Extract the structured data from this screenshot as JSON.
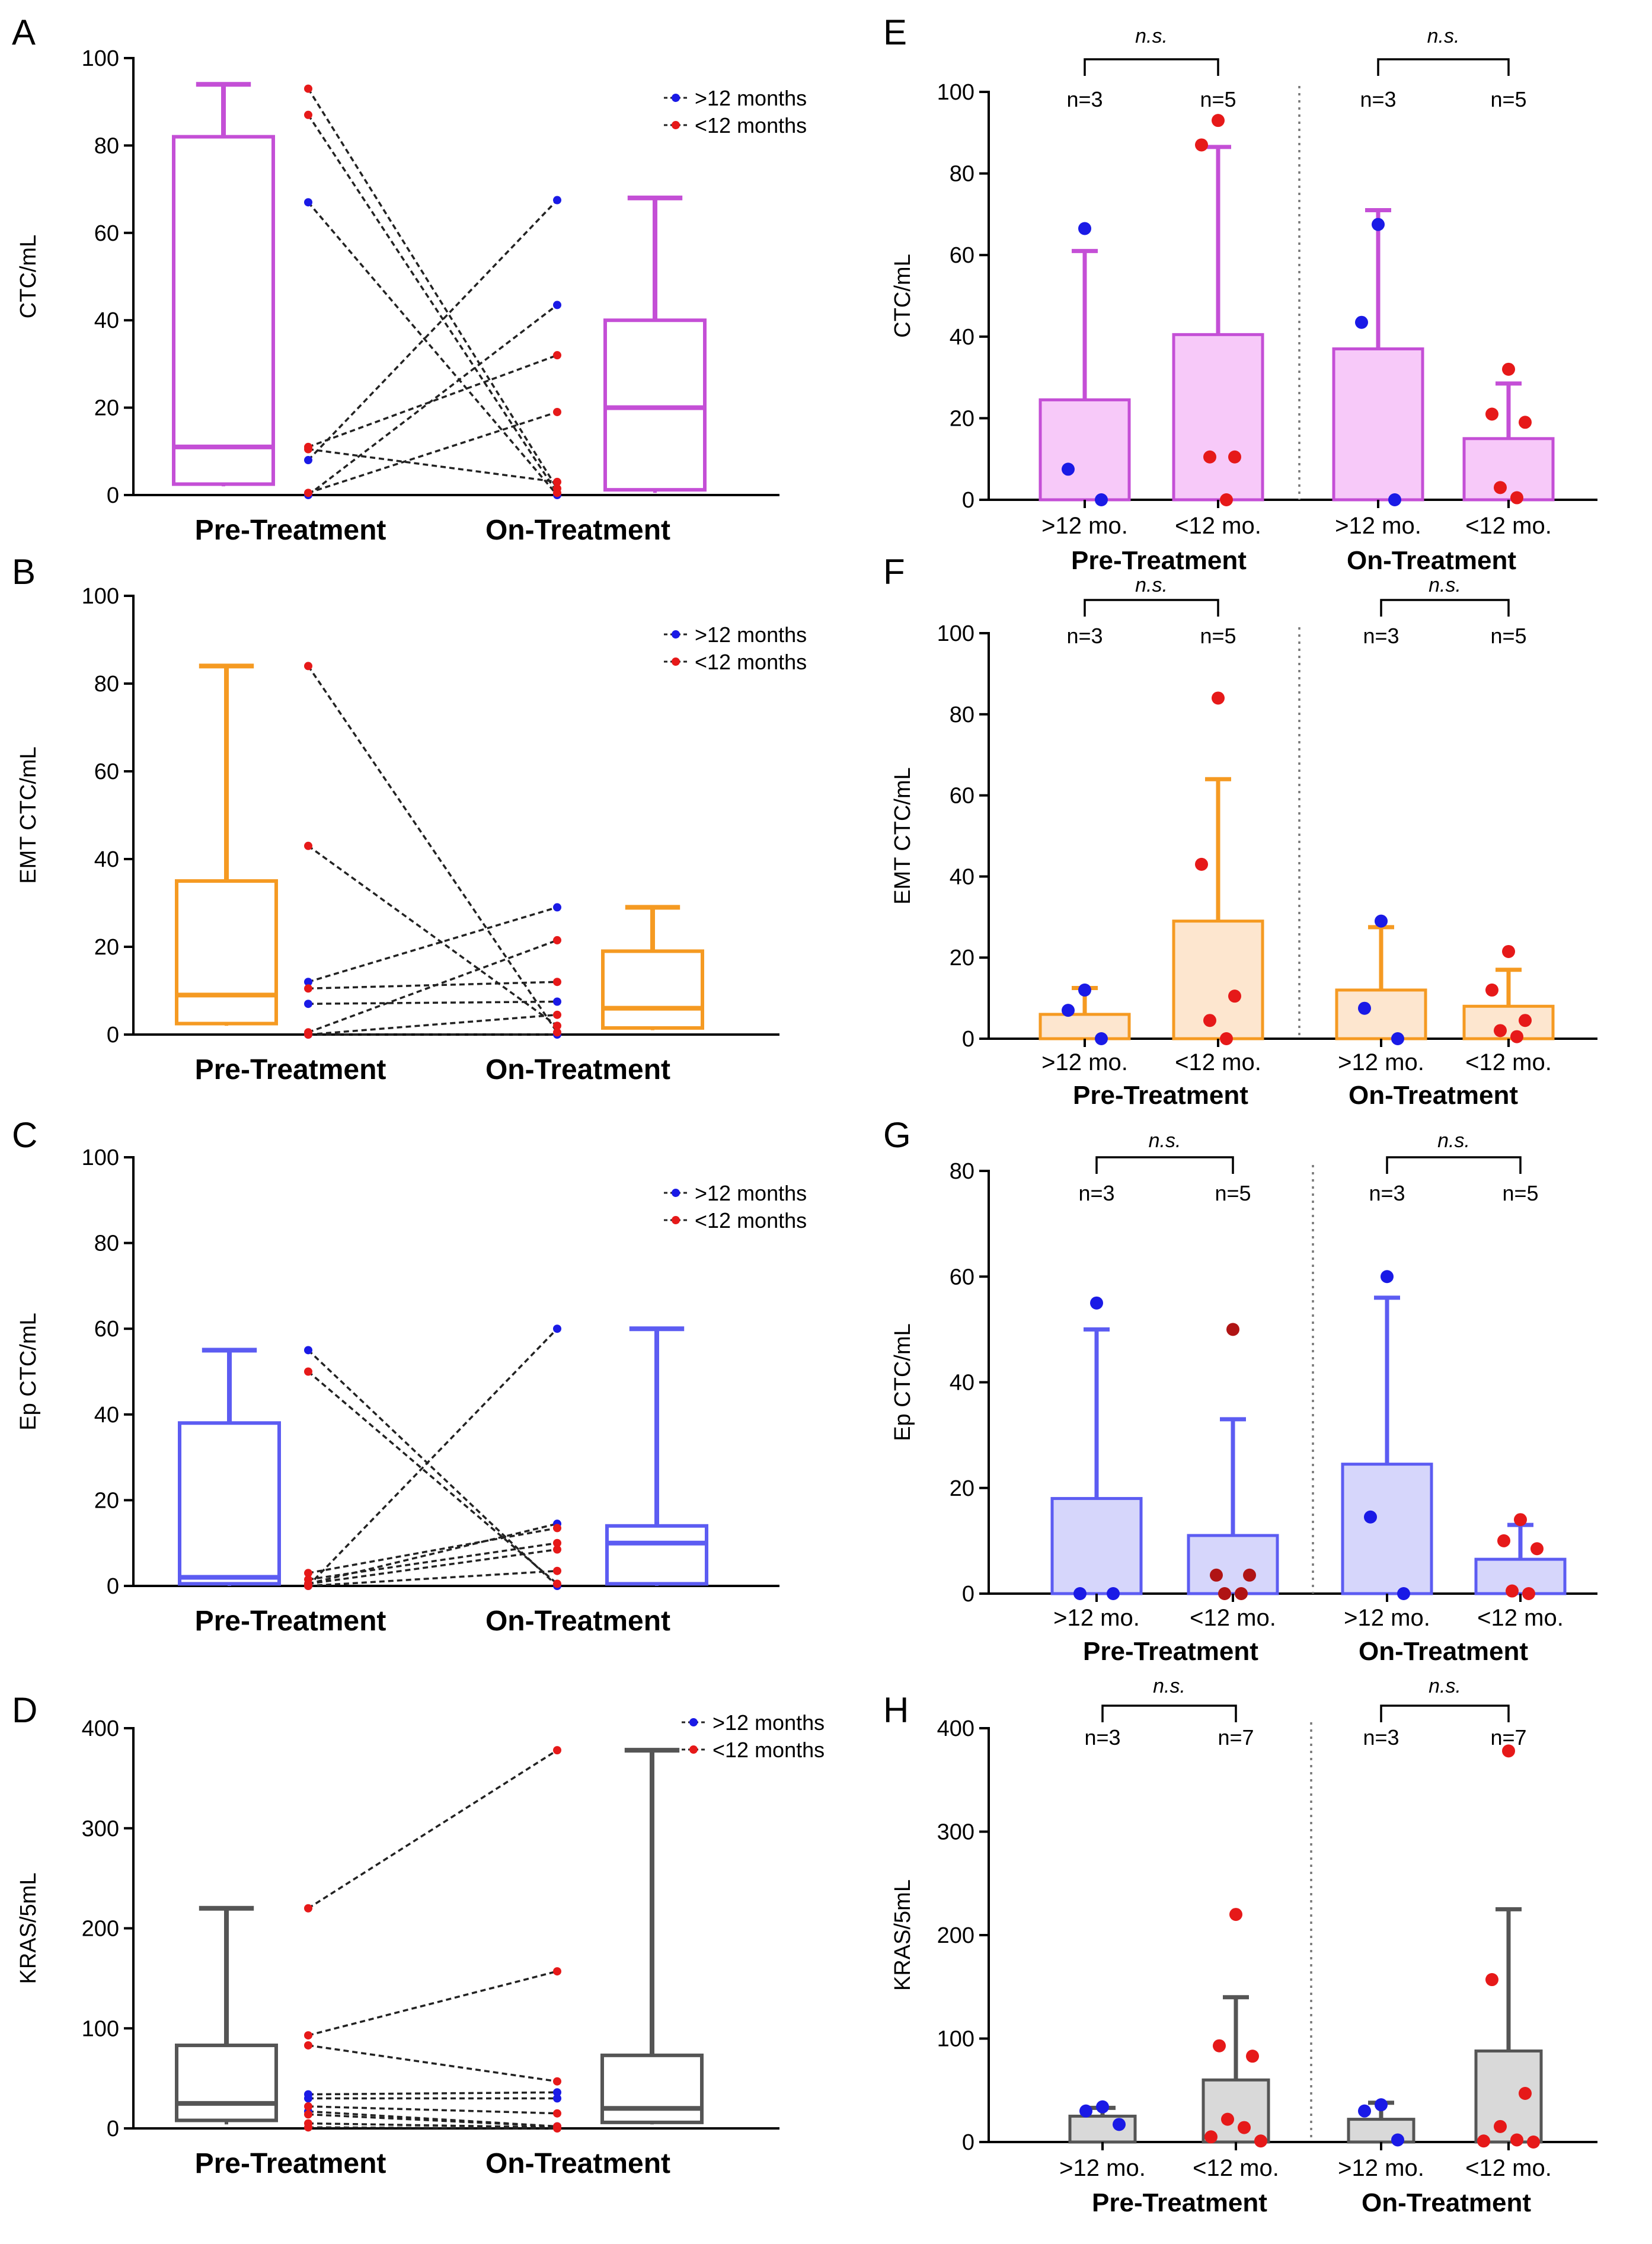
{
  "figure": {
    "colors": {
      "blue_point": "#1a1ae6",
      "red_point": "#e61919",
      "dark_red_point": "#b01414",
      "axis": "#000000",
      "connector": "#222222",
      "separator": "#777777"
    }
  },
  "chart_data": [
    {
      "id": "A",
      "type": "boxplot_paired",
      "panel_label": "A",
      "ylabel": "CTC/mL",
      "ylim": [
        0,
        100
      ],
      "yticks": [
        0,
        20,
        40,
        60,
        80,
        100
      ],
      "color": "#c44fd6",
      "xlabels": [
        "Pre-Treatment",
        "On-Treatment"
      ],
      "legend": [
        {
          "label": ">12 months",
          "color": "#1a1ae6"
        },
        {
          "label": "<12 months",
          "color": "#e61919"
        }
      ],
      "boxes": [
        {
          "group": "Pre-Treatment",
          "min": 2.0,
          "q1": 2.5,
          "median": 11.0,
          "q3": 82.0,
          "max": 94.0
        },
        {
          "group": "On-Treatment",
          "min": 0.5,
          "q1": 1.2,
          "median": 20.0,
          "q3": 40.0,
          "max": 68.0
        }
      ],
      "pairs": [
        {
          "group": ">12 months",
          "pre": 67.0,
          "on": 0.0
        },
        {
          "group": ">12 months",
          "pre": 8.0,
          "on": 67.5
        },
        {
          "group": ">12 months",
          "pre": 0.0,
          "on": 43.5
        },
        {
          "group": "<12 months",
          "pre": 93.0,
          "on": 1.5
        },
        {
          "group": "<12 months",
          "pre": 87.0,
          "on": 0.5
        },
        {
          "group": "<12 months",
          "pre": 11.0,
          "on": 32.0
        },
        {
          "group": "<12 months",
          "pre": 10.5,
          "on": 3.0
        },
        {
          "group": "<12 months",
          "pre": 0.5,
          "on": 19.0
        }
      ]
    },
    {
      "id": "B",
      "type": "boxplot_paired",
      "panel_label": "B",
      "ylabel": "EMT CTC/mL",
      "ylim": [
        0,
        100
      ],
      "yticks": [
        0,
        20,
        40,
        60,
        80,
        100
      ],
      "color": "#f59a22",
      "xlabels": [
        "Pre-Treatment",
        "On-Treatment"
      ],
      "legend": [
        {
          "label": ">12 months",
          "color": "#1a1ae6"
        },
        {
          "label": "<12 months",
          "color": "#e61919"
        }
      ],
      "boxes": [
        {
          "group": "Pre-Treatment",
          "min": 2.0,
          "q1": 2.5,
          "median": 9.0,
          "q3": 35.0,
          "max": 84.0
        },
        {
          "group": "On-Treatment",
          "min": 1.0,
          "q1": 1.5,
          "median": 6.0,
          "q3": 19.0,
          "max": 29.0
        }
      ],
      "pairs": [
        {
          "group": ">12 months",
          "pre": 12.0,
          "on": 29.0
        },
        {
          "group": ">12 months",
          "pre": 7.0,
          "on": 7.5
        },
        {
          "group": ">12 months",
          "pre": 0.0,
          "on": 0.0
        },
        {
          "group": "<12 months",
          "pre": 84.0,
          "on": 0.5
        },
        {
          "group": "<12 months",
          "pre": 43.0,
          "on": 2.0
        },
        {
          "group": "<12 months",
          "pre": 10.5,
          "on": 12.0
        },
        {
          "group": "<12 months",
          "pre": 0.5,
          "on": 21.5
        },
        {
          "group": "<12 months",
          "pre": 0.0,
          "on": 4.5
        }
      ]
    },
    {
      "id": "C",
      "type": "boxplot_paired",
      "panel_label": "C",
      "ylabel": "Ep CTC/mL",
      "ylim": [
        0,
        100
      ],
      "yticks": [
        0,
        20,
        40,
        60,
        80,
        100
      ],
      "color": "#5c5cf2",
      "xlabels": [
        "Pre-Treatment",
        "On-Treatment"
      ],
      "legend": [
        {
          "label": ">12 months",
          "color": "#1a1ae6"
        },
        {
          "label": "<12 months",
          "color": "#e61919"
        }
      ],
      "boxes": [
        {
          "group": "Pre-Treatment",
          "min": 0.0,
          "q1": 0.5,
          "median": 2.0,
          "q3": 38.0,
          "max": 55.0
        },
        {
          "group": "On-Treatment",
          "min": 0.0,
          "q1": 0.5,
          "median": 10.0,
          "q3": 14.0,
          "max": 60.0
        }
      ],
      "pairs": [
        {
          "group": ">12 months",
          "pre": 55.0,
          "on": 0.0
        },
        {
          "group": ">12 months",
          "pre": 0.0,
          "on": 60.0
        },
        {
          "group": ">12 months",
          "pre": 0.5,
          "on": 14.5
        },
        {
          "group": "<12 months",
          "pre": 50.0,
          "on": 0.5
        },
        {
          "group": "<12 months",
          "pre": 3.0,
          "on": 13.5
        },
        {
          "group": "<12 months",
          "pre": 1.5,
          "on": 10.0
        },
        {
          "group": "<12 months",
          "pre": 0.5,
          "on": 8.5
        },
        {
          "group": "<12 months",
          "pre": 0.0,
          "on": 3.5
        }
      ]
    },
    {
      "id": "D",
      "type": "boxplot_paired",
      "panel_label": "D",
      "ylabel": "KRAS/5mL",
      "ylim": [
        0,
        400
      ],
      "yticks": [
        0,
        100,
        200,
        300,
        400
      ],
      "color": "#555555",
      "xlabels": [
        "Pre-Treatment",
        "On-Treatment"
      ],
      "legend": [
        {
          "label": ">12 months",
          "color": "#1a1ae6"
        },
        {
          "label": "<12 months",
          "color": "#e61919"
        }
      ],
      "boxes": [
        {
          "group": "Pre-Treatment",
          "min": 4.0,
          "q1": 8.0,
          "median": 25.0,
          "q3": 83.0,
          "max": 220.0
        },
        {
          "group": "On-Treatment",
          "min": 4.0,
          "q1": 6.0,
          "median": 20.0,
          "q3": 73.0,
          "max": 378.0
        }
      ],
      "pairs": [
        {
          "group": ">12 months",
          "pre": 34.0,
          "on": 36.0
        },
        {
          "group": ">12 months",
          "pre": 30.0,
          "on": 30.0
        },
        {
          "group": ">12 months",
          "pre": 17.0,
          "on": 2.0
        },
        {
          "group": "<12 months",
          "pre": 220.0,
          "on": 378.0
        },
        {
          "group": "<12 months",
          "pre": 93.0,
          "on": 157.0
        },
        {
          "group": "<12 months",
          "pre": 83.0,
          "on": 47.0
        },
        {
          "group": "<12 months",
          "pre": 22.0,
          "on": 15.0
        },
        {
          "group": "<12 months",
          "pre": 14.0,
          "on": 2.0
        },
        {
          "group": "<12 months",
          "pre": 5.0,
          "on": 1.0
        },
        {
          "group": "<12 months",
          "pre": 1.0,
          "on": 0.0
        }
      ]
    },
    {
      "id": "E",
      "type": "bar_with_points",
      "panel_label": "E",
      "ylabel": "CTC/mL",
      "ylim": [
        0,
        100
      ],
      "yticks": [
        0,
        20,
        40,
        60,
        80,
        100
      ],
      "color": "#c44fd6",
      "fill": "#f7c9f9",
      "sig_label": "n.s.",
      "groups": [
        "Pre-Treatment",
        "On-Treatment"
      ],
      "bars": [
        {
          "category": ">12 mo.",
          "group": "Pre-Treatment",
          "n_label": "n=3",
          "mean": 24.5,
          "err": 61.0,
          "points": [
            {
              "v": 66.5,
              "c": "blue"
            },
            {
              "v": 7.5,
              "c": "blue"
            },
            {
              "v": 0.0,
              "c": "blue"
            }
          ]
        },
        {
          "category": "<12 mo.",
          "group": "Pre-Treatment",
          "n_label": "n=5",
          "mean": 40.5,
          "err": 86.5,
          "points": [
            {
              "v": 93.0,
              "c": "red"
            },
            {
              "v": 87.0,
              "c": "red"
            },
            {
              "v": 10.5,
              "c": "red"
            },
            {
              "v": 10.5,
              "c": "red"
            },
            {
              "v": 0.0,
              "c": "red"
            }
          ]
        },
        {
          "category": ">12 mo.",
          "group": "On-Treatment",
          "n_label": "n=3",
          "mean": 37.0,
          "err": 71.0,
          "points": [
            {
              "v": 67.5,
              "c": "blue"
            },
            {
              "v": 43.5,
              "c": "blue"
            },
            {
              "v": 0.0,
              "c": "blue"
            }
          ]
        },
        {
          "category": "<12 mo.",
          "group": "On-Treatment",
          "n_label": "n=5",
          "mean": 15.0,
          "err": 28.5,
          "points": [
            {
              "v": 32.0,
              "c": "red"
            },
            {
              "v": 21.0,
              "c": "red"
            },
            {
              "v": 19.0,
              "c": "red"
            },
            {
              "v": 3.0,
              "c": "red"
            },
            {
              "v": 0.5,
              "c": "red"
            }
          ]
        }
      ]
    },
    {
      "id": "F",
      "type": "bar_with_points",
      "panel_label": "F",
      "ylabel": "EMT CTC/mL",
      "ylim": [
        0,
        100
      ],
      "yticks": [
        0,
        20,
        40,
        60,
        80,
        100
      ],
      "color": "#f59a22",
      "fill": "#fde6cf",
      "sig_label": "n.s.",
      "groups": [
        "Pre-Treatment",
        "On-Treatment"
      ],
      "bars": [
        {
          "category": ">12 mo.",
          "group": "Pre-Treatment",
          "n_label": "n=3",
          "mean": 6.0,
          "err": 12.5,
          "points": [
            {
              "v": 12.0,
              "c": "blue"
            },
            {
              "v": 7.0,
              "c": "blue"
            },
            {
              "v": 0.0,
              "c": "blue"
            }
          ]
        },
        {
          "category": "<12 mo.",
          "group": "Pre-Treatment",
          "n_label": "n=5",
          "mean": 29.0,
          "err": 64.0,
          "points": [
            {
              "v": 84.0,
              "c": "red"
            },
            {
              "v": 43.0,
              "c": "red"
            },
            {
              "v": 10.5,
              "c": "red"
            },
            {
              "v": 4.5,
              "c": "red"
            },
            {
              "v": 0.0,
              "c": "red"
            }
          ]
        },
        {
          "category": ">12 mo.",
          "group": "On-Treatment",
          "n_label": "n=3",
          "mean": 12.0,
          "err": 27.5,
          "points": [
            {
              "v": 29.0,
              "c": "blue"
            },
            {
              "v": 7.5,
              "c": "blue"
            },
            {
              "v": 0.0,
              "c": "blue"
            }
          ]
        },
        {
          "category": "<12 mo.",
          "group": "On-Treatment",
          "n_label": "n=5",
          "mean": 8.0,
          "err": 17.0,
          "points": [
            {
              "v": 21.5,
              "c": "red"
            },
            {
              "v": 12.0,
              "c": "red"
            },
            {
              "v": 4.5,
              "c": "red"
            },
            {
              "v": 2.0,
              "c": "red"
            },
            {
              "v": 0.5,
              "c": "red"
            }
          ]
        }
      ]
    },
    {
      "id": "G",
      "type": "bar_with_points",
      "panel_label": "G",
      "ylabel": "Ep CTC/mL",
      "ylim": [
        0,
        80
      ],
      "yticks": [
        0,
        20,
        40,
        60,
        80
      ],
      "color": "#5c5cf2",
      "fill": "#d6d6fb",
      "sig_label": "n.s.",
      "groups": [
        "Pre-Treatment",
        "On-Treatment"
      ],
      "bars": [
        {
          "category": ">12 mo.",
          "group": "Pre-Treatment",
          "n_label": "n=3",
          "mean": 18.0,
          "err": 50.0,
          "points": [
            {
              "v": 55.0,
              "c": "blue"
            },
            {
              "v": 0.0,
              "c": "blue"
            },
            {
              "v": 0.0,
              "c": "blue"
            }
          ]
        },
        {
          "category": "<12 mo.",
          "group": "Pre-Treatment",
          "n_label": "n=5",
          "mean": 11.0,
          "err": 33.0,
          "points": [
            {
              "v": 50.0,
              "c": "darkred"
            },
            {
              "v": 3.5,
              "c": "darkred"
            },
            {
              "v": 3.5,
              "c": "darkred"
            },
            {
              "v": 0.0,
              "c": "darkred"
            },
            {
              "v": 0.0,
              "c": "darkred"
            }
          ]
        },
        {
          "category": ">12 mo.",
          "group": "On-Treatment",
          "n_label": "n=3",
          "mean": 24.5,
          "err": 56.0,
          "points": [
            {
              "v": 60.0,
              "c": "blue"
            },
            {
              "v": 14.5,
              "c": "blue"
            },
            {
              "v": 0.0,
              "c": "blue"
            }
          ]
        },
        {
          "category": "<12 mo.",
          "group": "On-Treatment",
          "n_label": "n=5",
          "mean": 6.5,
          "err": 13.0,
          "points": [
            {
              "v": 14.0,
              "c": "red"
            },
            {
              "v": 10.0,
              "c": "red"
            },
            {
              "v": 8.5,
              "c": "red"
            },
            {
              "v": 0.5,
              "c": "red"
            },
            {
              "v": 0.0,
              "c": "red"
            }
          ]
        }
      ]
    },
    {
      "id": "H",
      "type": "bar_with_points",
      "panel_label": "H",
      "ylabel": "KRAS/5mL",
      "ylim": [
        0,
        400
      ],
      "yticks": [
        0,
        100,
        200,
        300,
        400
      ],
      "color": "#555555",
      "fill": "#d9d9d9",
      "sig_label": "n.s.",
      "groups": [
        "Pre-Treatment",
        "On-Treatment"
      ],
      "bars": [
        {
          "category": ">12 mo.",
          "group": "Pre-Treatment",
          "n_label": "n=3",
          "mean": 25.0,
          "err": 33.0,
          "points": [
            {
              "v": 34.0,
              "c": "blue"
            },
            {
              "v": 30.0,
              "c": "blue"
            },
            {
              "v": 17.0,
              "c": "blue"
            }
          ]
        },
        {
          "category": "<12 mo.",
          "group": "Pre-Treatment",
          "n_label": "n=7",
          "mean": 60.0,
          "err": 140.0,
          "points": [
            {
              "v": 220.0,
              "c": "red"
            },
            {
              "v": 93.0,
              "c": "red"
            },
            {
              "v": 83.0,
              "c": "red"
            },
            {
              "v": 22.0,
              "c": "red"
            },
            {
              "v": 14.0,
              "c": "red"
            },
            {
              "v": 5.0,
              "c": "red"
            },
            {
              "v": 1.0,
              "c": "red"
            }
          ]
        },
        {
          "category": ">12 mo.",
          "group": "On-Treatment",
          "n_label": "n=3",
          "mean": 22.0,
          "err": 38.0,
          "points": [
            {
              "v": 36.0,
              "c": "blue"
            },
            {
              "v": 30.0,
              "c": "blue"
            },
            {
              "v": 2.0,
              "c": "blue"
            }
          ]
        },
        {
          "category": "<12 mo.",
          "group": "On-Treatment",
          "n_label": "n=7",
          "mean": 88.0,
          "err": 225.0,
          "points": [
            {
              "v": 378.0,
              "c": "red"
            },
            {
              "v": 157.0,
              "c": "red"
            },
            {
              "v": 47.0,
              "c": "red"
            },
            {
              "v": 15.0,
              "c": "red"
            },
            {
              "v": 2.0,
              "c": "red"
            },
            {
              "v": 1.0,
              "c": "red"
            },
            {
              "v": 0.0,
              "c": "red"
            }
          ]
        }
      ]
    }
  ]
}
